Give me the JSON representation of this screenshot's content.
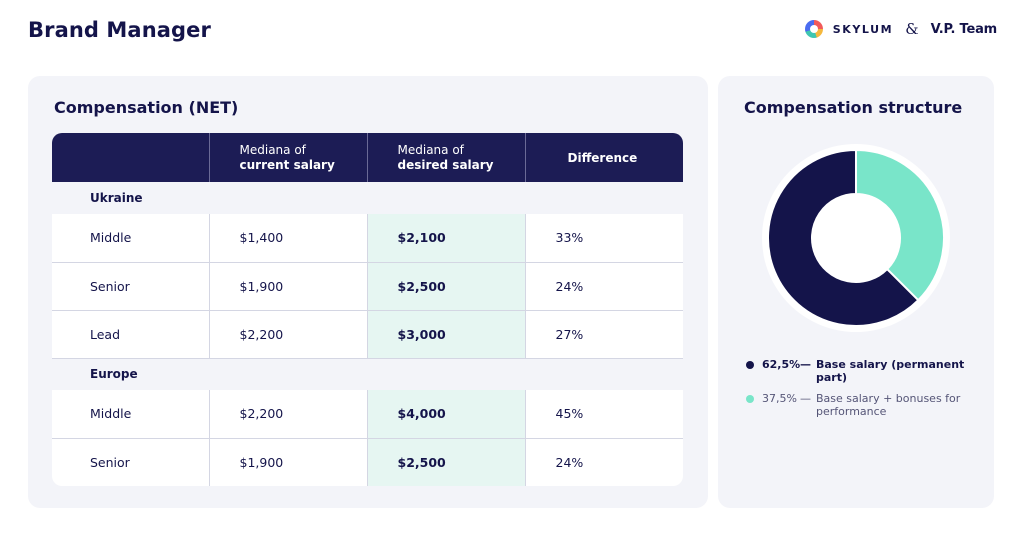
{
  "page": {
    "title": "Brand Manager",
    "brand_left": "SKYLUM",
    "brand_amp": "&",
    "brand_right": "V.P. Team"
  },
  "table": {
    "title": "Compensation (NET)",
    "headers": [
      {
        "line1": "",
        "line2": ""
      },
      {
        "line1": "Mediana of",
        "line2": "current salary"
      },
      {
        "line1": "Mediana of",
        "line2": "desired salary"
      },
      {
        "line1": "",
        "line2": "Difference"
      }
    ],
    "sections": [
      {
        "name": "Ukraine",
        "rows": [
          {
            "role": "Middle",
            "current": "$1,400",
            "desired": "$2,100",
            "difference": "33%"
          },
          {
            "role": "Senior",
            "current": "$1,900",
            "desired": "$2,500",
            "difference": "24%"
          },
          {
            "role": "Lead",
            "current": "$2,200",
            "desired": "$3,000",
            "difference": "27%"
          }
        ]
      },
      {
        "name": "Europe",
        "rows": [
          {
            "role": "Middle",
            "current": "$2,200",
            "desired": "$4,000",
            "difference": "45%"
          },
          {
            "role": "Senior",
            "current": "$1,900",
            "desired": "$2,500",
            "difference": "24%"
          }
        ]
      }
    ]
  },
  "chart_data": {
    "type": "pie",
    "title": "Compensation structure",
    "series": [
      {
        "name": "Base salary (permanent part)",
        "pct_label": "62,5%",
        "value": 62.5,
        "color": "#14144a"
      },
      {
        "name": "Base salary + bonuses for performance",
        "pct_label": "37,5%",
        "value": 37.5,
        "color": "#79e5c9"
      }
    ],
    "legend": [
      {
        "pct": "62,5%",
        "dash": "—",
        "text": "Base salary (permanent part)"
      },
      {
        "pct": "37,5%",
        "dash": "—",
        "text": "Base salary + bonuses for performance"
      }
    ],
    "legend_position": "bottom"
  }
}
